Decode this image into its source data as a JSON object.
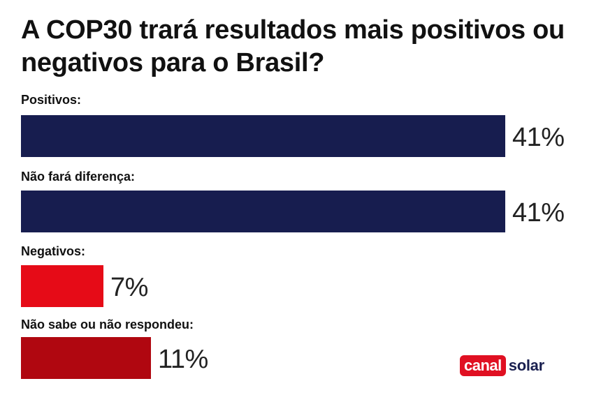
{
  "chart_data": {
    "type": "bar",
    "orientation": "horizontal",
    "title": "A COP30 trará resultados mais positivos ou negativos para o Brasil?",
    "categories": [
      "Positivos:",
      "Não fará diferença:",
      "Negativos:",
      "Não sabe ou não respondeu:"
    ],
    "values": [
      41,
      41,
      7,
      11
    ],
    "value_labels": [
      "41%",
      "41%",
      "7%",
      "11%"
    ],
    "colors": [
      "#171d4f",
      "#171d4f",
      "#e60b17",
      "#b00710"
    ],
    "unit": "%",
    "grid": false,
    "legend": "none"
  },
  "brand": {
    "logo_part1": "canal",
    "logo_part2": "solar",
    "logo_color": "#e01022",
    "logo_text_color": "#1a2050"
  }
}
